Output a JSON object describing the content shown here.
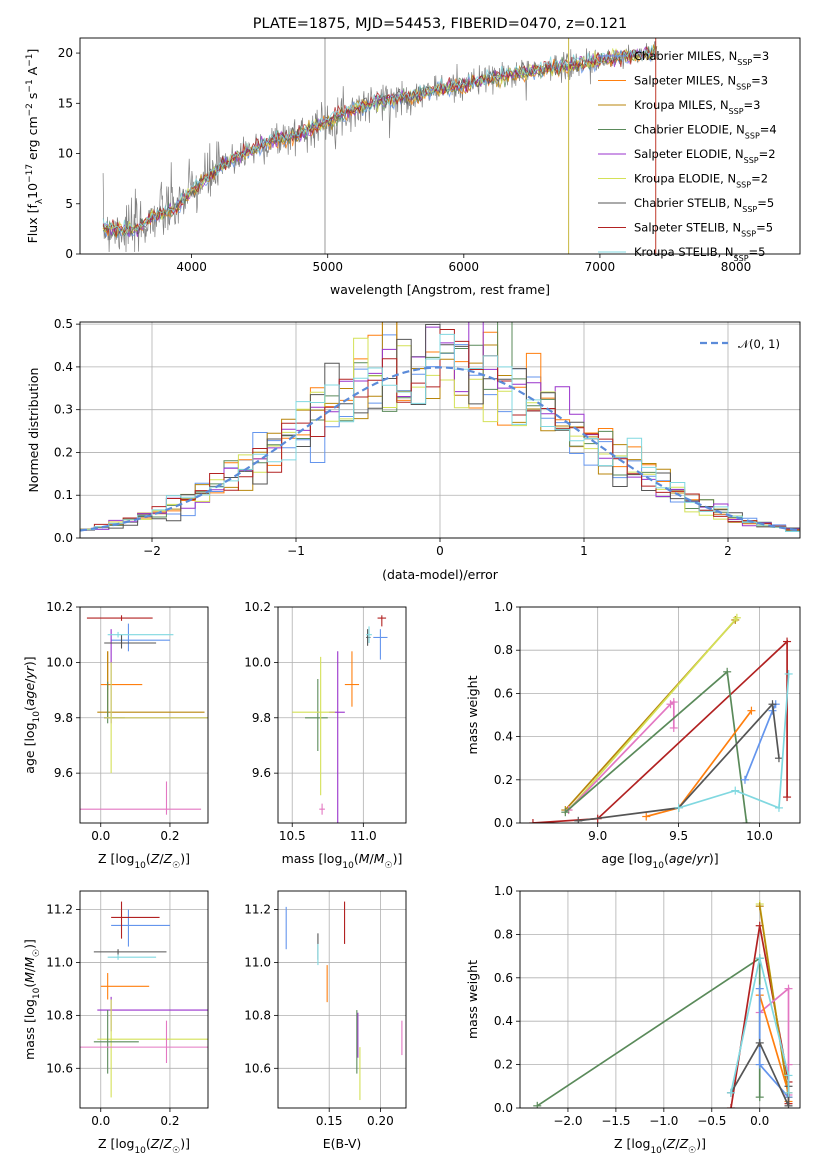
{
  "figure": {
    "title": "PLATE=1875, MJD=54453, FIBERID=0470, z=0.121"
  },
  "model_colors": {
    "Chabrier MILES": "#6495ed",
    "Salpeter MILES": "#ff7f0e",
    "Kroupa MILES": "#b8860b",
    "Chabrier ELODIE": "#5a8a5a",
    "Salpeter ELODIE": "#9932cc",
    "Kroupa ELODIE": "#d4e157",
    "Chabrier STELIB": "#555555",
    "Salpeter STELIB": "#b22222",
    "Kroupa STELIB": "#80d8e0",
    "data": "#808080"
  },
  "chart_data": [
    {
      "id": "spectrum",
      "type": "line",
      "title": "PLATE=1875, MJD=54453, FIBERID=0470, z=0.121",
      "xlabel": "wavelength [Angstrom, rest frame]",
      "ylabel": "Flux [f",
      "ylabel_full": "Flux [fλ10^-17 erg cm^-2 s^-1 A^-1]",
      "xlim": [
        3180,
        8470
      ],
      "ylim": [
        0,
        21.5
      ],
      "xticks": [
        "4000",
        "5000",
        "6000",
        "7000",
        "8000"
      ],
      "yticks": [
        "0",
        "5",
        "10",
        "15",
        "20"
      ],
      "grid": false,
      "legend_position": "top-right",
      "legend": [
        {
          "label": "Chabrier MILES, N",
          "sub": "SSP",
          "tail": "=3",
          "color": "#6495ed"
        },
        {
          "label": "Salpeter MILES, N",
          "sub": "SSP",
          "tail": "=3",
          "color": "#ff7f0e"
        },
        {
          "label": "Kroupa MILES, N",
          "sub": "SSP",
          "tail": "=3",
          "color": "#b8860b"
        },
        {
          "label": "Chabrier ELODIE, N",
          "sub": "SSP",
          "tail": "=4",
          "color": "#5a8a5a"
        },
        {
          "label": "Salpeter ELODIE, N",
          "sub": "SSP",
          "tail": "=2",
          "color": "#9932cc"
        },
        {
          "label": "Kroupa ELODIE, N",
          "sub": "SSP",
          "tail": "=2",
          "color": "#d4e157"
        },
        {
          "label": "Chabrier STELIB, N",
          "sub": "SSP",
          "tail": "=5",
          "color": "#555555"
        },
        {
          "label": "Salpeter STELIB, N",
          "sub": "SSP",
          "tail": "=5",
          "color": "#b22222"
        },
        {
          "label": "Kroupa STELIB, N",
          "sub": "SSP",
          "tail": "=5",
          "color": "#80d8e0"
        }
      ],
      "continuum": {
        "x": [
          3350,
          3600,
          3700,
          3800,
          3900,
          4000,
          4200,
          4400,
          4600,
          4800,
          5000,
          5200,
          5400,
          5600,
          5800,
          6000,
          6200,
          6400,
          6600,
          6800,
          7000,
          7200,
          7400
        ],
        "y": [
          2.6,
          2.4,
          3.6,
          4.2,
          4.8,
          6.3,
          8.5,
          10.2,
          11.3,
          12.0,
          13.2,
          14.5,
          15.3,
          15.6,
          16.4,
          16.8,
          17.5,
          18.0,
          18.4,
          18.8,
          19.3,
          19.7,
          20.0
        ]
      },
      "spikes": [
        {
          "x": 4980,
          "ymax": 21.5
        },
        {
          "x": 6770,
          "ymax": 21.5
        },
        {
          "x": 7410,
          "ymax": 21.5
        }
      ]
    },
    {
      "id": "residuals",
      "type": "step",
      "xlabel": "(data-model)/error",
      "ylabel": "Normed distribution",
      "xlim": [
        -2.5,
        2.5
      ],
      "ylim": [
        0,
        0.505
      ],
      "xticks": [
        "−2",
        "−1",
        "0",
        "1",
        "2"
      ],
      "yticks": [
        "0.0",
        "0.1",
        "0.2",
        "0.3",
        "0.4",
        "0.5"
      ],
      "grid": true,
      "legend_position": "top-right",
      "gaussian_label": "𝒩(0, 1)",
      "gaussian_color": "#5b8bd9",
      "bin_width": 0.1
    },
    {
      "id": "age-vs-Z",
      "type": "errorbar",
      "xlabel": "Z [log",
      "ylabel": "age  [log",
      "xlim": [
        -0.06,
        0.31
      ],
      "ylim": [
        9.42,
        10.2
      ],
      "xticks": [
        "0.0",
        "0.2"
      ],
      "yticks": [
        "9.6",
        "9.8",
        "10.0",
        "10.2"
      ],
      "grid": true,
      "points": [
        {
          "model": "Chabrier MILES",
          "x": 0.08,
          "y": 10.08,
          "xerr": [
            0.05,
            0.12
          ],
          "yerr": [
            0.04,
            0.06
          ]
        },
        {
          "model": "Salpeter MILES",
          "x": 0.02,
          "y": 9.92,
          "xerr": [
            0.02,
            0.1
          ],
          "yerr": [
            0.02,
            0.12
          ]
        },
        {
          "model": "Kroupa MILES",
          "x": 0.02,
          "y": 9.82,
          "xerr": [
            0.03,
            0.28
          ],
          "yerr": [
            0.02,
            0.22
          ]
        },
        {
          "model": "Chabrier ELODIE",
          "x": 0.02,
          "y": 9.8,
          "xerr": [
            0.01,
            0.05
          ],
          "yerr": [
            0.02,
            0.13
          ]
        },
        {
          "model": "Salpeter ELODIE",
          "x": 0.03,
          "y": 9.8,
          "xerr": [
            0.02,
            0.28
          ],
          "yerr": [
            0.02,
            0.32
          ]
        },
        {
          "model": "Kroupa ELODIE",
          "x": 0.03,
          "y": 9.8,
          "xerr": [
            0.02,
            0.28
          ],
          "yerr": [
            0.2,
            0.2
          ]
        },
        {
          "model": "Chabrier STELIB",
          "x": 0.06,
          "y": 10.07,
          "xerr": [
            0.05,
            0.1
          ],
          "yerr": [
            0.02,
            0.03
          ]
        },
        {
          "model": "Salpeter STELIB",
          "x": 0.06,
          "y": 10.16,
          "xerr": [
            0.1,
            0.09
          ],
          "yerr": [
            0.01,
            0.01
          ]
        },
        {
          "model": "Kroupa STELIB",
          "x": 0.05,
          "y": 10.1,
          "xerr": [
            0.03,
            0.16
          ],
          "yerr": [
            0.01,
            0.01
          ]
        },
        {
          "model": "pink",
          "x": 0.19,
          "y": 9.47,
          "xerr": [
            0.27,
            0.1
          ],
          "yerr": [
            0.02,
            0.1
          ]
        }
      ]
    },
    {
      "id": "age-vs-mass",
      "type": "errorbar",
      "xlabel": "mass [log",
      "ylabel": "",
      "xlim": [
        10.4,
        11.3
      ],
      "ylim": [
        9.42,
        10.2
      ],
      "xticks": [
        "10.5",
        "11.0"
      ],
      "yticks": [
        "9.6",
        "9.8",
        "10.0",
        "10.2"
      ],
      "grid": true,
      "points": [
        {
          "model": "Chabrier MILES",
          "x": 11.12,
          "y": 10.09,
          "xerr": [
            0.05,
            0.05
          ],
          "yerr": [
            0.08,
            0.03
          ]
        },
        {
          "model": "Salpeter MILES",
          "x": 10.92,
          "y": 9.92,
          "xerr": [
            0.05,
            0.05
          ],
          "yerr": [
            0.08,
            0.12
          ]
        },
        {
          "model": "Chabrier ELODIE",
          "x": 10.68,
          "y": 9.8,
          "xerr": [
            0.09,
            0.07
          ],
          "yerr": [
            0.12,
            0.14
          ]
        },
        {
          "model": "Salpeter ELODIE",
          "x": 10.82,
          "y": 9.82,
          "xerr": [
            0.06,
            0.05
          ],
          "yerr": [
            0.4,
            0.22
          ]
        },
        {
          "model": "Kroupa ELODIE",
          "x": 10.7,
          "y": 9.82,
          "xerr": [
            0.2,
            0.1
          ],
          "yerr": [
            0.3,
            0.2
          ]
        },
        {
          "model": "Chabrier STELIB",
          "x": 11.03,
          "y": 10.09,
          "xerr": [
            0.01,
            0.02
          ],
          "yerr": [
            0.03,
            0.03
          ]
        },
        {
          "model": "Salpeter STELIB",
          "x": 11.13,
          "y": 10.16,
          "xerr": [
            0.03,
            0.03
          ],
          "yerr": [
            0.03,
            0.01
          ]
        },
        {
          "model": "Kroupa STELIB",
          "x": 11.04,
          "y": 10.1,
          "xerr": [
            0.02,
            0.02
          ],
          "yerr": [
            0.03,
            0.03
          ]
        },
        {
          "model": "pink",
          "x": 10.71,
          "y": 9.47,
          "xerr": [
            0.02,
            0.02
          ],
          "yerr": [
            0.02,
            0.02
          ]
        }
      ]
    },
    {
      "id": "weight-vs-age",
      "type": "line",
      "xlabel": "age  [log",
      "ylabel": "mass weight",
      "xlim": [
        8.52,
        10.25
      ],
      "ylim": [
        0,
        1.0
      ],
      "xticks": [
        "9.0",
        "9.5",
        "10.0"
      ],
      "yticks": [
        "0.0",
        "0.2",
        "0.4",
        "0.6",
        "0.8",
        "1.0"
      ],
      "grid": true,
      "series": [
        {
          "model": "Kroupa MILES",
          "x": [
            8.8,
            9.85
          ],
          "y": [
            0.06,
            0.94
          ]
        },
        {
          "model": "Kroupa ELODIE",
          "x": [
            8.82,
            9.86
          ],
          "y": [
            0.06,
            0.95
          ]
        },
        {
          "model": "pink",
          "x": [
            8.82,
            9.45,
            9.47,
            9.47
          ],
          "y": [
            0.06,
            0.55,
            0.56,
            0.44
          ]
        },
        {
          "model": "Salpeter STELIB",
          "x": [
            8.6,
            9.0,
            10.17,
            10.17
          ],
          "y": [
            0.0,
            0.02,
            0.84,
            0.12
          ]
        },
        {
          "model": "Chabrier ELODIE",
          "x": [
            8.8,
            9.8,
            9.92
          ],
          "y": [
            0.05,
            0.7,
            0.0
          ]
        },
        {
          "model": "Salpeter MILES",
          "x": [
            9.3,
            9.5,
            9.95
          ],
          "y": [
            0.03,
            0.07,
            0.52
          ]
        },
        {
          "model": "Chabrier MILES",
          "x": [
            9.91,
            10.08,
            10.1
          ],
          "y": [
            0.2,
            0.52,
            0.55
          ]
        },
        {
          "model": "Chabrier STELIB",
          "x": [
            8.88,
            9.5,
            10.08,
            10.12
          ],
          "y": [
            0.01,
            0.07,
            0.55,
            0.3
          ]
        },
        {
          "model": "Kroupa STELIB",
          "x": [
            9.5,
            9.85,
            10.12,
            10.18
          ],
          "y": [
            0.07,
            0.15,
            0.07,
            0.69
          ]
        }
      ]
    },
    {
      "id": "mass-vs-Z",
      "type": "errorbar",
      "xlabel": "Z [log",
      "ylabel": "mass [log",
      "xlim": [
        -0.06,
        0.31
      ],
      "ylim": [
        10.45,
        11.27
      ],
      "xticks": [
        "0.0",
        "0.2"
      ],
      "yticks": [
        "10.6",
        "10.8",
        "11.0",
        "11.2"
      ],
      "grid": true,
      "points": [
        {
          "model": "Chabrier MILES",
          "x": 0.08,
          "y": 11.14,
          "xerr": [
            0.05,
            0.12
          ],
          "yerr": [
            0.08,
            0.06
          ]
        },
        {
          "model": "Salpeter MILES",
          "x": 0.02,
          "y": 10.91,
          "xerr": [
            0.02,
            0.12
          ],
          "yerr": [
            0.05,
            0.05
          ]
        },
        {
          "model": "Salpeter ELODIE",
          "x": 0.03,
          "y": 10.82,
          "xerr": [
            0.04,
            0.28
          ],
          "yerr": [
            0.08,
            0.05
          ]
        },
        {
          "model": "Kroupa ELODIE",
          "x": 0.03,
          "y": 10.71,
          "xerr": [
            0.04,
            0.28
          ],
          "yerr": [
            0.22,
            0.15
          ]
        },
        {
          "model": "Chabrier ELODIE",
          "x": 0.02,
          "y": 10.7,
          "xerr": [
            0.04,
            0.09
          ],
          "yerr": [
            0.12,
            0.12
          ]
        },
        {
          "model": "Chabrier STELIB",
          "x": 0.05,
          "y": 11.04,
          "xerr": [
            0.07,
            0.14
          ],
          "yerr": [
            0.01,
            0.01
          ]
        },
        {
          "model": "Salpeter STELIB",
          "x": 0.06,
          "y": 11.17,
          "xerr": [
            0.03,
            0.11
          ],
          "yerr": [
            0.08,
            0.06
          ]
        },
        {
          "model": "Kroupa STELIB",
          "x": 0.05,
          "y": 11.02,
          "xerr": [
            0.03,
            0.11
          ],
          "yerr": [
            0.01,
            0.01
          ]
        },
        {
          "model": "pink",
          "x": 0.19,
          "y": 10.68,
          "xerr": [
            0.25,
            0.12
          ],
          "yerr": [
            0.06,
            0.1
          ]
        }
      ]
    },
    {
      "id": "mass-vs-EBV",
      "type": "errorbar",
      "xlabel": "E(B-V)",
      "ylabel": "",
      "xlim": [
        0.1,
        0.225
      ],
      "ylim": [
        10.45,
        11.27
      ],
      "xticks": [
        "0.15",
        "0.20"
      ],
      "yticks": [
        "10.6",
        "10.8",
        "11.0",
        "11.2"
      ],
      "grid": true,
      "points": [
        {
          "model": "Chabrier MILES",
          "x": 0.108,
          "y": 11.13,
          "yerr": [
            0.08,
            0.08
          ]
        },
        {
          "model": "Chabrier STELIB",
          "x": 0.139,
          "y": 11.05,
          "yerr": [
            0.04,
            0.06
          ]
        },
        {
          "model": "Kroupa STELIB",
          "x": 0.139,
          "y": 11.03,
          "yerr": [
            0.04,
            0.04
          ]
        },
        {
          "model": "Salpeter MILES",
          "x": 0.148,
          "y": 10.93,
          "yerr": [
            0.08,
            0.06
          ]
        },
        {
          "model": "Salpeter STELIB",
          "x": 0.165,
          "y": 11.15,
          "yerr": [
            0.08,
            0.08
          ]
        },
        {
          "model": "Salpeter ELODIE",
          "x": 0.178,
          "y": 10.74,
          "yerr": [
            0.1,
            0.07
          ]
        },
        {
          "model": "Chabrier ELODIE",
          "x": 0.177,
          "y": 10.72,
          "yerr": [
            0.14,
            0.1
          ]
        },
        {
          "model": "Kroupa ELODIE",
          "x": 0.18,
          "y": 10.6,
          "yerr": [
            0.12,
            0.08
          ]
        },
        {
          "model": "pink",
          "x": 0.221,
          "y": 10.72,
          "yerr": [
            0.07,
            0.06
          ]
        }
      ]
    },
    {
      "id": "weight-vs-Z",
      "type": "line",
      "xlabel": "Z [log",
      "ylabel": "mass weight",
      "xlim": [
        -2.5,
        0.42
      ],
      "ylim": [
        0,
        1.0
      ],
      "xticks": [
        "−2.0",
        "−1.5",
        "−1.0",
        "−0.5",
        "0.0"
      ],
      "yticks": [
        "0.0",
        "0.2",
        "0.4",
        "0.6",
        "0.8",
        "1.0"
      ],
      "grid": true,
      "series": [
        {
          "model": "Chabrier ELODIE",
          "x": [
            -2.32,
            0.0,
            0.0
          ],
          "y": [
            0.01,
            0.69,
            0.05
          ]
        },
        {
          "model": "Salpeter STELIB",
          "x": [
            -0.3,
            0.0,
            0.3,
            0.3
          ],
          "y": [
            0.0,
            0.84,
            0.12,
            0.02
          ]
        },
        {
          "model": "Kroupa ELODIE",
          "x": [
            0.0,
            0.3
          ],
          "y": [
            0.94,
            0.05
          ]
        },
        {
          "model": "Kroupa MILES",
          "x": [
            0.0,
            0.3
          ],
          "y": [
            0.93,
            0.05
          ]
        },
        {
          "model": "pink",
          "x": [
            0.0,
            0.3,
            0.3,
            0.3
          ],
          "y": [
            0.44,
            0.55,
            0.2,
            0.06
          ]
        },
        {
          "model": "Salpeter MILES",
          "x": [
            0.0,
            0.3,
            0.3
          ],
          "y": [
            0.52,
            0.07,
            0.03
          ]
        },
        {
          "model": "Chabrier MILES",
          "x": [
            0.0,
            0.0,
            0.3
          ],
          "y": [
            0.55,
            0.2,
            0.05
          ]
        },
        {
          "model": "Chabrier STELIB",
          "x": [
            -0.3,
            0.0,
            0.3,
            0.3
          ],
          "y": [
            0.07,
            0.3,
            0.01,
            0.1
          ]
        },
        {
          "model": "Kroupa STELIB",
          "x": [
            -0.3,
            0.0,
            0.3,
            0.3
          ],
          "y": [
            0.07,
            0.69,
            0.15,
            0.07
          ]
        }
      ]
    }
  ]
}
